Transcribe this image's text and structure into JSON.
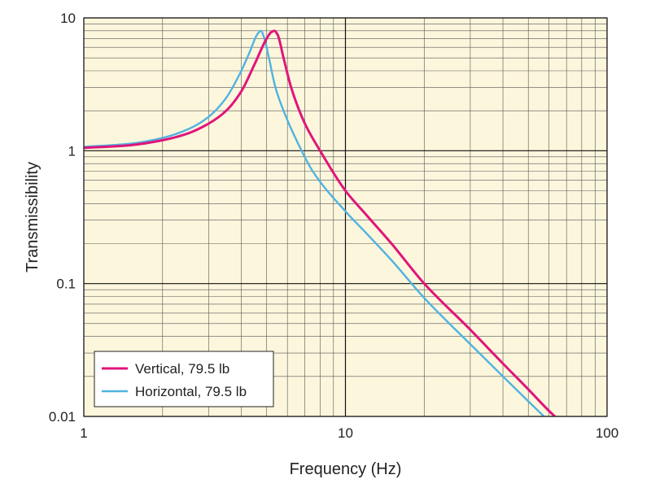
{
  "chart_data": {
    "type": "line",
    "title": "",
    "xlabel": "Frequency (Hz)",
    "ylabel": "Transmissibility",
    "xscale": "log",
    "yscale": "log",
    "xlim": [
      1,
      100
    ],
    "ylim": [
      0.01,
      10
    ],
    "grid": true,
    "xticks": [
      1,
      10,
      100
    ],
    "xtick_labels": [
      "1",
      "10",
      "100"
    ],
    "yticks": [
      0.01,
      0.1,
      1,
      10
    ],
    "ytick_labels": [
      "0.01",
      "0.1",
      "1",
      "10"
    ],
    "legend_position": "bottom-left",
    "background_color": "#FCF6DC",
    "series": [
      {
        "name": "Vertical, 79.5 lb",
        "color": "#E0157A",
        "x": [
          1,
          1.5,
          2,
          2.5,
          3,
          3.5,
          4,
          4.5,
          5,
          5.2,
          5.35,
          5.5,
          5.8,
          6.2,
          7,
          8,
          10,
          12,
          15,
          20,
          30,
          40,
          50,
          60,
          65
        ],
        "y": [
          1.05,
          1.1,
          1.2,
          1.35,
          1.6,
          2.0,
          2.8,
          4.5,
          7.0,
          7.8,
          8.0,
          7.5,
          5.0,
          3.0,
          1.6,
          1.0,
          0.5,
          0.33,
          0.2,
          0.1,
          0.045,
          0.025,
          0.016,
          0.011,
          0.0095
        ]
      },
      {
        "name": "Horizontal, 79.5 lb",
        "color": "#4FB3E0",
        "x": [
          1,
          1.5,
          2,
          2.5,
          3,
          3.5,
          4,
          4.3,
          4.6,
          4.75,
          4.9,
          5.1,
          5.4,
          5.8,
          6.5,
          7.5,
          10,
          12,
          15,
          20,
          30,
          40,
          50,
          58
        ],
        "y": [
          1.07,
          1.13,
          1.25,
          1.45,
          1.8,
          2.5,
          4.0,
          5.5,
          7.5,
          8.0,
          7.0,
          5.0,
          3.0,
          2.0,
          1.2,
          0.7,
          0.35,
          0.24,
          0.15,
          0.078,
          0.035,
          0.02,
          0.013,
          0.0098
        ]
      }
    ]
  }
}
